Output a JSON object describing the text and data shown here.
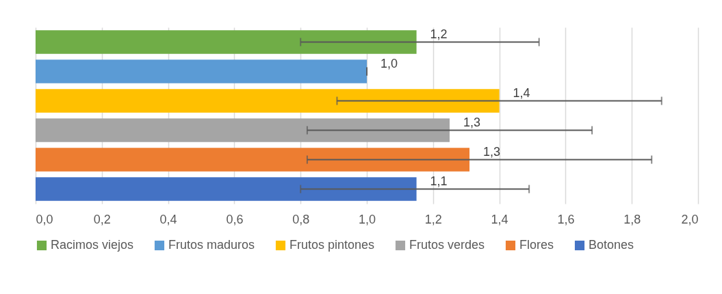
{
  "chart_data": {
    "type": "bar",
    "orientation": "horizontal",
    "categories": [
      null,
      null,
      null,
      null,
      null,
      null
    ],
    "series": [
      {
        "name": "Racimos viejos",
        "color": "#70ad47",
        "values": [
          1.15,
          null,
          null,
          null,
          null,
          null
        ],
        "errors": [
          [
            0.8,
            1.52
          ],
          null,
          null,
          null,
          null,
          null
        ],
        "value_labels": [
          "1,2",
          null,
          null,
          null,
          null,
          null
        ]
      },
      {
        "name": "Frutos maduros",
        "color": "#5b9bd5",
        "values": [
          null,
          1.0,
          null,
          null,
          null,
          null
        ],
        "errors": [
          null,
          [
            1.0,
            1.0
          ],
          null,
          null,
          null,
          null
        ],
        "value_labels": [
          null,
          "1,0",
          null,
          null,
          null,
          null
        ]
      },
      {
        "name": "Frutos pintones",
        "color": "#ffc000",
        "values": [
          null,
          null,
          1.4,
          null,
          null,
          null
        ],
        "errors": [
          null,
          null,
          [
            0.91,
            1.89
          ],
          null,
          null,
          null
        ],
        "value_labels": [
          null,
          null,
          "1,4",
          null,
          null,
          null
        ]
      },
      {
        "name": "Frutos verdes",
        "color": "#a5a5a5",
        "values": [
          null,
          null,
          null,
          1.25,
          null,
          null
        ],
        "errors": [
          null,
          null,
          null,
          [
            0.82,
            1.68
          ],
          null,
          null
        ],
        "value_labels": [
          null,
          null,
          null,
          "1,3",
          null,
          null
        ]
      },
      {
        "name": "Flores",
        "color": "#ed7d31",
        "values": [
          null,
          null,
          null,
          null,
          1.31,
          null
        ],
        "errors": [
          null,
          null,
          null,
          null,
          [
            0.82,
            1.86
          ],
          null
        ],
        "value_labels": [
          null,
          null,
          null,
          null,
          "1,3",
          null
        ]
      },
      {
        "name": "Botones",
        "color": "#4472c4",
        "values": [
          null,
          null,
          null,
          null,
          null,
          1.15
        ],
        "errors": [
          null,
          null,
          null,
          null,
          null,
          [
            0.8,
            1.49
          ]
        ],
        "value_labels": [
          null,
          null,
          null,
          null,
          null,
          "1,1"
        ]
      }
    ],
    "xlim": [
      0,
      2
    ],
    "xticks": [
      {
        "value": 0,
        "label": "0,0"
      },
      {
        "value": 0.2,
        "label": "0,2"
      },
      {
        "value": 0.4,
        "label": "0,4"
      },
      {
        "value": 0.6,
        "label": "0,6"
      },
      {
        "value": 0.8,
        "label": "0,8"
      },
      {
        "value": 1.0,
        "label": "1,0"
      },
      {
        "value": 1.2,
        "label": "1,2"
      },
      {
        "value": 1.4,
        "label": "1,4"
      },
      {
        "value": 1.6,
        "label": "1,6"
      },
      {
        "value": 1.8,
        "label": "1,8"
      },
      {
        "value": 2.0,
        "label": "2,0"
      }
    ],
    "grid": "x",
    "legend": "bottom"
  }
}
